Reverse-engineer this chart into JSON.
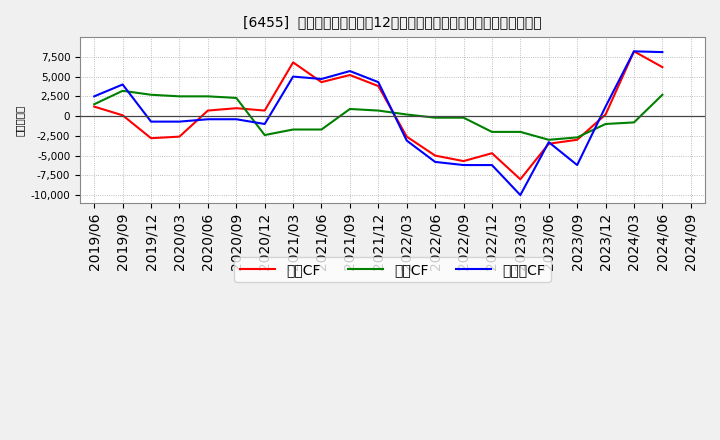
{
  "title": "[6455]  キャッシュフローの12か月移動合計の対前年同期増減額の推移",
  "ylabel": "（百万円）",
  "xlabels": [
    "2019/06",
    "2019/09",
    "2019/12",
    "2020/03",
    "2020/06",
    "2020/09",
    "2020/12",
    "2021/03",
    "2021/06",
    "2021/09",
    "2021/12",
    "2022/03",
    "2022/06",
    "2022/09",
    "2022/12",
    "2023/03",
    "2023/06",
    "2023/09",
    "2023/12",
    "2024/03",
    "2024/06",
    "2024/09"
  ],
  "operating_cf": [
    1200,
    100,
    -2800,
    -2600,
    700,
    1000,
    700,
    6800,
    4300,
    5200,
    3800,
    -2600,
    -5000,
    -5700,
    -4700,
    -8000,
    -3500,
    -3000,
    200,
    8200,
    6200,
    null
  ],
  "investing_cf": [
    1500,
    3200,
    2700,
    2500,
    2500,
    2300,
    -2400,
    -1700,
    -1700,
    900,
    700,
    200,
    -200,
    -200,
    -2000,
    -2000,
    -3000,
    -2700,
    -1000,
    -800,
    2700,
    null
  ],
  "free_cf": [
    2500,
    4000,
    -700,
    -700,
    -400,
    -400,
    -1000,
    5000,
    4700,
    5700,
    4300,
    -3100,
    -5800,
    -6200,
    -6200,
    -10000,
    -3300,
    -6200,
    1200,
    8200,
    8100,
    null
  ],
  "ylim": [
    -11000,
    10000
  ],
  "yticks": [
    -10000,
    -7500,
    -5000,
    -2500,
    0,
    2500,
    5000,
    7500
  ],
  "line_colors": {
    "operating": "#ff0000",
    "investing": "#008000",
    "free": "#0000ff"
  },
  "legend_labels": [
    "営業CF",
    "投資CF",
    "フリーCF"
  ],
  "background_color": "#f0f0f0",
  "plot_bg_color": "#ffffff",
  "grid_color": "#aaaaaa",
  "title_fontsize": 10.5,
  "axis_fontsize": 7.5,
  "legend_fontsize": 9
}
